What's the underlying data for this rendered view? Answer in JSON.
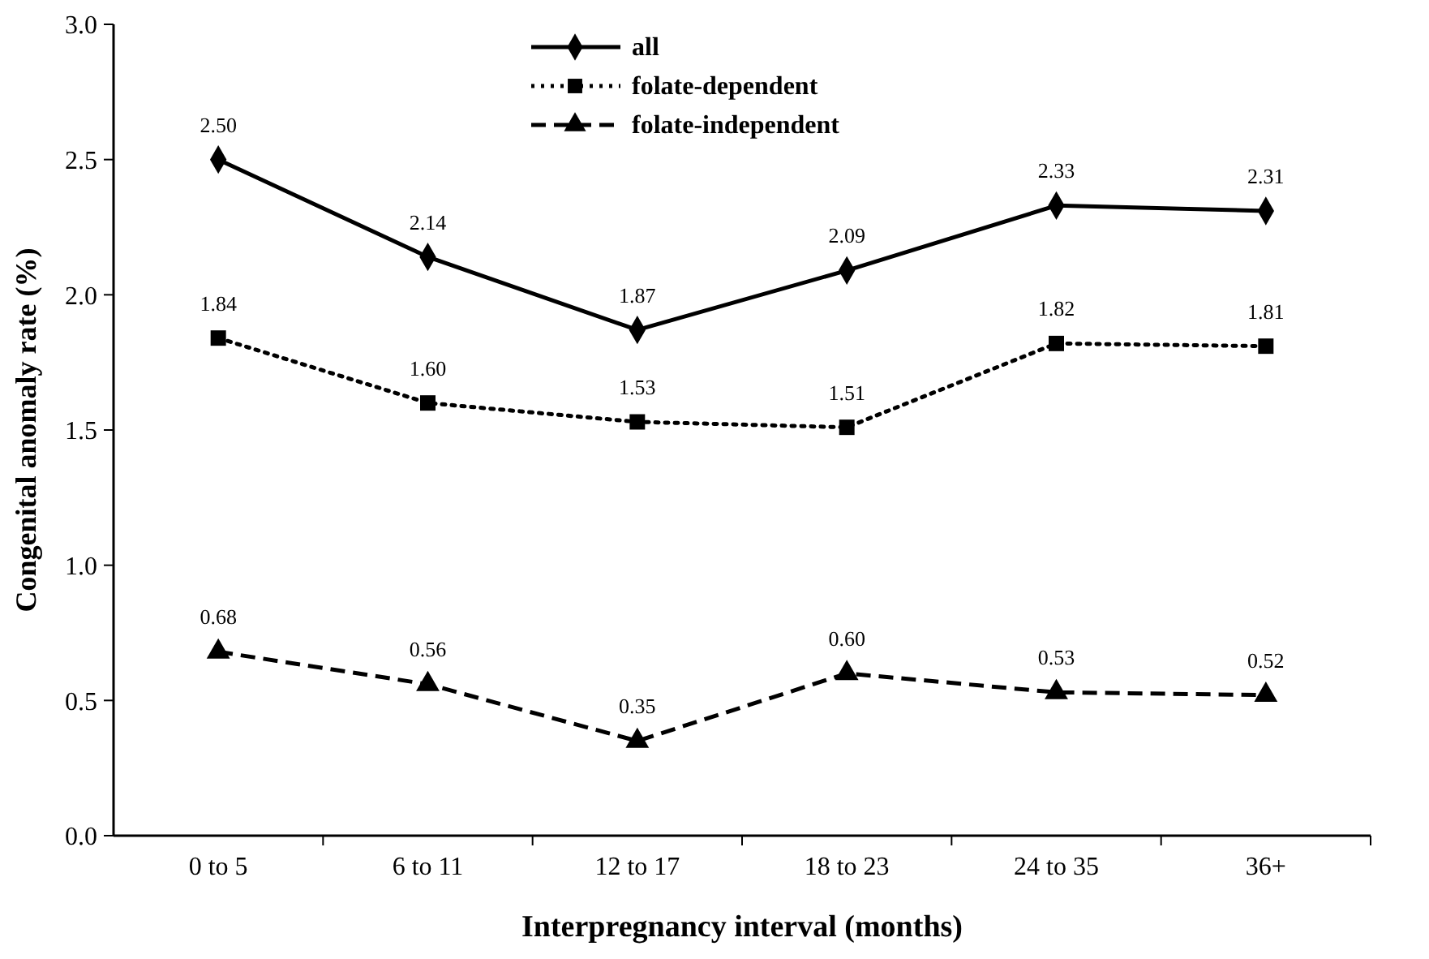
{
  "chart_data": {
    "type": "line",
    "xlabel": "Interpregnancy interval (months)",
    "ylabel": "Congenital anomaly rate (%)",
    "categories": [
      "0 to 5",
      "6 to 11",
      "12 to 17",
      "18 to 23",
      "24 to 35",
      "36+"
    ],
    "series": [
      {
        "name": "all",
        "color": "#000000",
        "values": [
          2.5,
          2.14,
          1.87,
          2.09,
          2.33,
          2.31
        ],
        "value_labels": [
          "2.50",
          "2.14",
          "1.87",
          "2.09",
          "2.33",
          "2.31"
        ],
        "marker": "diamond",
        "line_style": "solid"
      },
      {
        "name": "folate-dependent",
        "color": "#000000",
        "values": [
          1.84,
          1.6,
          1.53,
          1.51,
          1.82,
          1.81
        ],
        "value_labels": [
          "1.84",
          "1.60",
          "1.53",
          "1.51",
          "1.82",
          "1.81"
        ],
        "marker": "square",
        "line_style": "dotted"
      },
      {
        "name": "folate-independent",
        "color": "#000000",
        "values": [
          0.68,
          0.56,
          0.35,
          0.6,
          0.53,
          0.52
        ],
        "value_labels": [
          "0.68",
          "0.56",
          "0.35",
          "0.60",
          "0.53",
          "0.52"
        ],
        "marker": "triangle",
        "line_style": "dashed"
      }
    ],
    "ylim": [
      0,
      3
    ],
    "yticks": [
      {
        "value": 0,
        "label": "0.0"
      },
      {
        "value": 0.5,
        "label": "0.5"
      },
      {
        "value": 1,
        "label": "1.0"
      },
      {
        "value": 1.5,
        "label": "1.5"
      },
      {
        "value": 2,
        "label": "2.0"
      },
      {
        "value": 2.5,
        "label": "2.5"
      },
      {
        "value": 3,
        "label": "3.0"
      }
    ],
    "legend": "top",
    "grid": false
  }
}
